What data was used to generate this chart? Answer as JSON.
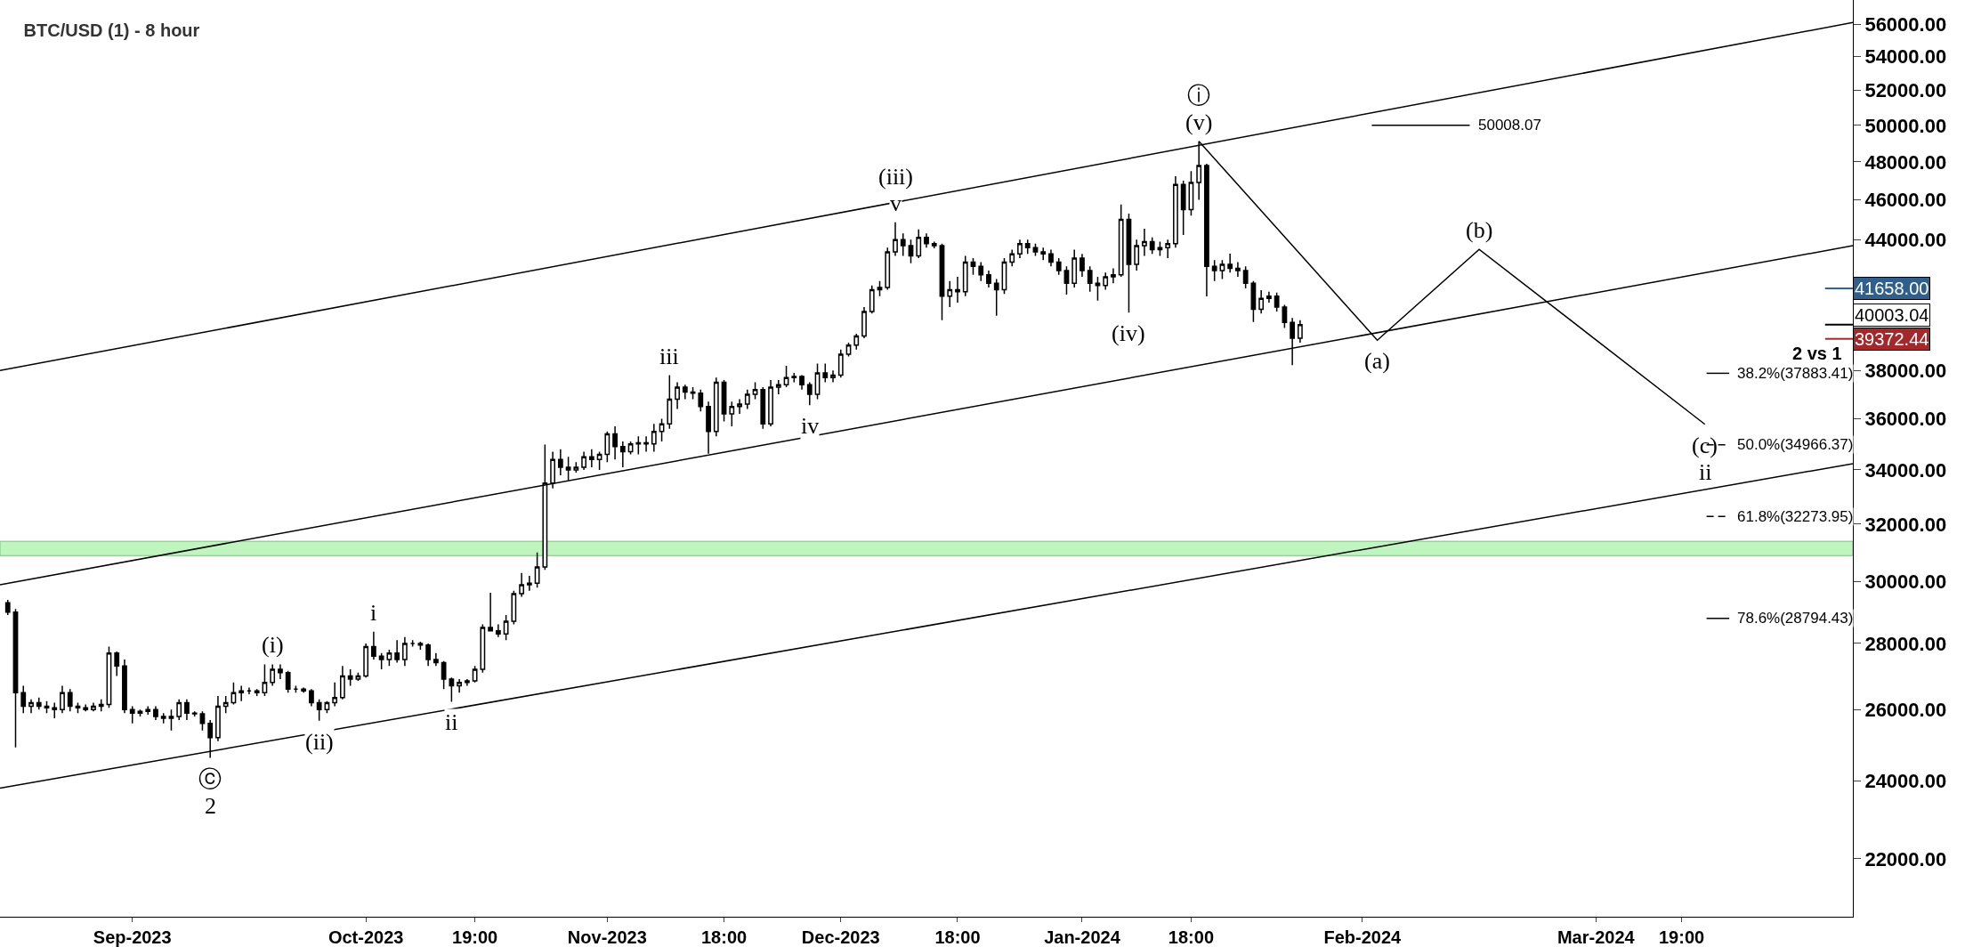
{
  "chart_data": {
    "type": "candlestick",
    "title": "BTC/USD (1) - 8 hour",
    "log": true,
    "grid": false,
    "marker": "none",
    "xlim": [
      "2023-08-15",
      "2024-04-09"
    ],
    "xticks": [
      {
        "value": "2023-09-01",
        "label": "Sep-2023"
      },
      {
        "value": "2023-10-01",
        "label": "Oct-2023"
      },
      {
        "value": "2023-10-15",
        "label": "19:00"
      },
      {
        "value": "2023-11-01",
        "label": "Nov-2023"
      },
      {
        "value": "2023-11-16",
        "label": "18:00"
      },
      {
        "value": "2023-12-01",
        "label": "Dec-2023"
      },
      {
        "value": "2023-12-16",
        "label": "18:00"
      },
      {
        "value": "2024-01-01",
        "label": "Jan-2024"
      },
      {
        "value": "2024-01-15",
        "label": "18:00"
      },
      {
        "value": "2024-02-06",
        "label": "Feb-2024"
      },
      {
        "value": "2024-03-07",
        "label": "Mar-2024"
      },
      {
        "value": "2024-03-18",
        "label": "19:00"
      }
    ],
    "ylim": [
      20620,
      57530
    ],
    "yticks": [
      {
        "value": 22000,
        "label": "22000.00"
      },
      {
        "value": 24000,
        "label": "24000.00"
      },
      {
        "value": 26000,
        "label": "26000.00"
      },
      {
        "value": 28000,
        "label": "28000.00"
      },
      {
        "value": 30000,
        "label": "30000.00"
      },
      {
        "value": 32000,
        "label": "32000.00"
      },
      {
        "value": 34000,
        "label": "34000.00"
      },
      {
        "value": 36000,
        "label": "36000.00"
      },
      {
        "value": 38000,
        "label": "38000.00"
      },
      {
        "value": 40000,
        "label": null
      },
      {
        "value": 42000,
        "label": null
      },
      {
        "value": 44000,
        "label": "44000.00"
      },
      {
        "value": 46000,
        "label": "46000.00"
      },
      {
        "value": 48000,
        "label": "48000.00"
      },
      {
        "value": 50000,
        "label": "50000.00"
      },
      {
        "value": 52000,
        "label": "52000.00"
      },
      {
        "value": 54000,
        "label": "54000.00"
      },
      {
        "value": 56000,
        "label": "56000.00"
      }
    ],
    "bands": [
      {
        "axis": "y",
        "from": 30890,
        "to": 31390,
        "color": "#c0f5c0"
      }
    ],
    "series": [
      {
        "type": "line",
        "color": "#000000",
        "line_style": "solid",
        "x": [
          "2023-08-15",
          "2024-04-09"
        ],
        "values": [
          38000,
          56100
        ]
      },
      {
        "type": "line",
        "color": "#000000",
        "line_style": "solid",
        "x": [
          "2023-08-15",
          "2024-04-09"
        ],
        "values": [
          29900,
          43700
        ]
      },
      {
        "type": "line",
        "color": "#000000",
        "line_style": "solid",
        "x": [
          "2023-08-15",
          "2024-04-09"
        ],
        "values": [
          23810,
          34240
        ]
      },
      {
        "type": "line",
        "color": "#000000",
        "line_style": "solid",
        "x": [
          "2024-01-16",
          "2024-02-07T22:00",
          "2024-02-21",
          "2024-03-21"
        ],
        "values": [
          49120,
          39310,
          43520,
          35780
        ]
      },
      {
        "type": "line",
        "color": "#000000",
        "line_style": "solid",
        "x": [
          "2024-02-07T05:00",
          "2024-02-19T19:00"
        ],
        "values": [
          50008.07,
          50008.07
        ]
      },
      {
        "type": "line",
        "color": "#000000",
        "line_style": "solid",
        "x": [
          "2024-03-21T05:00",
          "2024-03-24T03:00"
        ],
        "values": [
          37883.41,
          37883.41
        ]
      },
      {
        "type": "line",
        "color": "#000000",
        "line_style": "dashed",
        "x": [
          "2024-03-21T05:00",
          "2024-03-24T03:00"
        ],
        "values": [
          34966.37,
          34966.37
        ]
      },
      {
        "type": "line",
        "color": "#000000",
        "line_style": "dashed",
        "x": [
          "2024-03-21T05:00",
          "2024-03-24T03:00"
        ],
        "values": [
          32273.95,
          32273.95
        ]
      },
      {
        "type": "line",
        "color": "#000000",
        "line_style": "solid",
        "x": [
          "2024-03-21T05:00",
          "2024-03-24T03:00"
        ],
        "values": [
          28794.43,
          28794.43
        ]
      },
      {
        "color": "#000000",
        "x": [
          "2023-08-16",
          "2023-08-17",
          "2023-08-18",
          "2023-08-19",
          "2023-08-20",
          "2023-08-21",
          "2023-08-22",
          "2023-08-23",
          "2023-08-24",
          "2023-08-25",
          "2023-08-26",
          "2023-08-27",
          "2023-08-28",
          "2023-08-29",
          "2023-08-30",
          "2023-08-31",
          "2023-09-01",
          "2023-09-02",
          "2023-09-03",
          "2023-09-04",
          "2023-09-05",
          "2023-09-06",
          "2023-09-07",
          "2023-09-08",
          "2023-09-09",
          "2023-09-10",
          "2023-09-11",
          "2023-09-12",
          "2023-09-13",
          "2023-09-14",
          "2023-09-15",
          "2023-09-16",
          "2023-09-17",
          "2023-09-18",
          "2023-09-19",
          "2023-09-20",
          "2023-09-21",
          "2023-09-22",
          "2023-09-23",
          "2023-09-24",
          "2023-09-25",
          "2023-09-26",
          "2023-09-27",
          "2023-09-28",
          "2023-09-29",
          "2023-09-30",
          "2023-10-01",
          "2023-10-02",
          "2023-10-03",
          "2023-10-04",
          "2023-10-05",
          "2023-10-06",
          "2023-10-07",
          "2023-10-08",
          "2023-10-09",
          "2023-10-10",
          "2023-10-11",
          "2023-10-12",
          "2023-10-13",
          "2023-10-14",
          "2023-10-15",
          "2023-10-16",
          "2023-10-17",
          "2023-10-18",
          "2023-10-19",
          "2023-10-20",
          "2023-10-21",
          "2023-10-22",
          "2023-10-23",
          "2023-10-24",
          "2023-10-25",
          "2023-10-26",
          "2023-10-27",
          "2023-10-28",
          "2023-10-29",
          "2023-10-30",
          "2023-10-31",
          "2023-11-01",
          "2023-11-02",
          "2023-11-03",
          "2023-11-04",
          "2023-11-05",
          "2023-11-06",
          "2023-11-07",
          "2023-11-08",
          "2023-11-09",
          "2023-11-10",
          "2023-11-11",
          "2023-11-12",
          "2023-11-13",
          "2023-11-14",
          "2023-11-15",
          "2023-11-16",
          "2023-11-17",
          "2023-11-18",
          "2023-11-19",
          "2023-11-20",
          "2023-11-21",
          "2023-11-22",
          "2023-11-23",
          "2023-11-24",
          "2023-11-25",
          "2023-11-26",
          "2023-11-27",
          "2023-11-28",
          "2023-11-29",
          "2023-11-30",
          "2023-12-01",
          "2023-12-02",
          "2023-12-03",
          "2023-12-04",
          "2023-12-05",
          "2023-12-06",
          "2023-12-07",
          "2023-12-08",
          "2023-12-09",
          "2023-12-10",
          "2023-12-11",
          "2023-12-12",
          "2023-12-13",
          "2023-12-14",
          "2023-12-15",
          "2023-12-16",
          "2023-12-17",
          "2023-12-18",
          "2023-12-19",
          "2023-12-20",
          "2023-12-21",
          "2023-12-22",
          "2023-12-23",
          "2023-12-24",
          "2023-12-25",
          "2023-12-26",
          "2023-12-27",
          "2023-12-28",
          "2023-12-29",
          "2023-12-30",
          "2023-12-31",
          "2024-01-01",
          "2024-01-02",
          "2024-01-03",
          "2024-01-04",
          "2024-01-05",
          "2024-01-06",
          "2024-01-07",
          "2024-01-08",
          "2024-01-09",
          "2024-01-10",
          "2024-01-11",
          "2024-01-12",
          "2024-01-13",
          "2024-01-14",
          "2024-01-15",
          "2024-01-16",
          "2024-01-17",
          "2024-01-18",
          "2024-01-19",
          "2024-01-20",
          "2024-01-21",
          "2024-01-22",
          "2024-01-23",
          "2024-01-24",
          "2024-01-25",
          "2024-01-26",
          "2024-01-27",
          "2024-01-28",
          "2024-01-29"
        ],
        "ohlc": [
          [
            29300,
            29400,
            28900,
            29000
          ],
          [
            29000,
            29100,
            24920,
            26500
          ],
          [
            26500,
            26700,
            25900,
            26100
          ],
          [
            26100,
            26300,
            25900,
            26200
          ],
          [
            26200,
            26350,
            26000,
            26100
          ],
          [
            26100,
            26250,
            25900,
            26050
          ],
          [
            26050,
            26200,
            25750,
            26000
          ],
          [
            26000,
            26700,
            25900,
            26500
          ],
          [
            26500,
            26600,
            25950,
            26100
          ],
          [
            26100,
            26200,
            25900,
            26050
          ],
          [
            26050,
            26150,
            25950,
            26000
          ],
          [
            26000,
            26200,
            25950,
            26100
          ],
          [
            26100,
            26300,
            25950,
            26150
          ],
          [
            26150,
            27900,
            26050,
            27700
          ],
          [
            27700,
            27750,
            27000,
            27300
          ],
          [
            27300,
            27500,
            25900,
            26000
          ],
          [
            26000,
            26100,
            25600,
            25900
          ],
          [
            25900,
            26000,
            25800,
            25950
          ],
          [
            25950,
            26100,
            25850,
            26000
          ],
          [
            26000,
            26100,
            25700,
            25800
          ],
          [
            25800,
            25900,
            25600,
            25750
          ],
          [
            25750,
            26000,
            25400,
            25800
          ],
          [
            25800,
            26300,
            25700,
            26200
          ],
          [
            26200,
            26300,
            25700,
            25900
          ],
          [
            25900,
            25950,
            25800,
            25880
          ],
          [
            25880,
            25950,
            25400,
            25600
          ],
          [
            25600,
            25700,
            24630,
            25200
          ],
          [
            25200,
            26400,
            25100,
            26100
          ],
          [
            26100,
            26400,
            25900,
            26200
          ],
          [
            26200,
            26800,
            26150,
            26500
          ],
          [
            26500,
            26700,
            26250,
            26550
          ],
          [
            26550,
            26650,
            26450,
            26550
          ],
          [
            26550,
            26600,
            26400,
            26500
          ],
          [
            26500,
            27350,
            26400,
            26800
          ],
          [
            26800,
            27350,
            26700,
            27200
          ],
          [
            27200,
            27350,
            26900,
            27100
          ],
          [
            27100,
            27150,
            26500,
            26600
          ],
          [
            26600,
            26700,
            26500,
            26600
          ],
          [
            26600,
            26650,
            26500,
            26550
          ],
          [
            26550,
            26600,
            26100,
            26200
          ],
          [
            26200,
            26300,
            25680,
            26000
          ],
          [
            26000,
            26250,
            25900,
            26200
          ],
          [
            26200,
            26800,
            26100,
            26350
          ],
          [
            26350,
            27300,
            26300,
            27000
          ],
          [
            27000,
            27200,
            26700,
            26900
          ],
          [
            26900,
            27100,
            26850,
            27000
          ],
          [
            27000,
            28000,
            26950,
            27900
          ],
          [
            27900,
            28370,
            27500,
            27600
          ],
          [
            27600,
            27700,
            27200,
            27500
          ],
          [
            27500,
            27800,
            27300,
            27700
          ],
          [
            27700,
            28100,
            27400,
            27500
          ],
          [
            27500,
            28200,
            27300,
            28000
          ],
          [
            28000,
            28100,
            27900,
            28000
          ],
          [
            28000,
            28050,
            27800,
            27950
          ],
          [
            27950,
            28000,
            27300,
            27500
          ],
          [
            27500,
            27700,
            27300,
            27400
          ],
          [
            27400,
            27450,
            26600,
            26900
          ],
          [
            26900,
            26950,
            26230,
            26700
          ],
          [
            26700,
            26900,
            26500,
            26800
          ],
          [
            26800,
            26900,
            26700,
            26850
          ],
          [
            26850,
            27300,
            26800,
            27200
          ],
          [
            27200,
            28600,
            27100,
            28500
          ],
          [
            28500,
            29630,
            28400,
            28400
          ],
          [
            28400,
            28600,
            28200,
            28300
          ],
          [
            28300,
            28900,
            28100,
            28700
          ],
          [
            28700,
            29700,
            28600,
            29600
          ],
          [
            29600,
            30300,
            29500,
            29900
          ],
          [
            29900,
            30200,
            29700,
            29950
          ],
          [
            29950,
            31000,
            29800,
            30500
          ],
          [
            30500,
            34980,
            30400,
            33500
          ],
          [
            33500,
            34700,
            33300,
            34400
          ],
          [
            34400,
            34800,
            33800,
            34100
          ],
          [
            34100,
            34500,
            33600,
            34000
          ],
          [
            34000,
            34300,
            33900,
            34100
          ],
          [
            34100,
            34700,
            34000,
            34500
          ],
          [
            34500,
            34800,
            34100,
            34400
          ],
          [
            34400,
            34700,
            34000,
            34600
          ],
          [
            34600,
            35500,
            34300,
            35400
          ],
          [
            35400,
            35700,
            34400,
            34900
          ],
          [
            34900,
            35100,
            34100,
            34700
          ],
          [
            34700,
            35100,
            34600,
            35000
          ],
          [
            35000,
            35300,
            34600,
            35050
          ],
          [
            35050,
            35300,
            34700,
            35000
          ],
          [
            35000,
            35800,
            34700,
            35500
          ],
          [
            35500,
            36000,
            35100,
            35800
          ],
          [
            35800,
            37800,
            35600,
            36800
          ],
          [
            36800,
            37500,
            36400,
            37300
          ],
          [
            37300,
            37400,
            36800,
            37100
          ],
          [
            37100,
            37300,
            36800,
            37050
          ],
          [
            37050,
            37200,
            36300,
            36500
          ],
          [
            36500,
            36700,
            34620,
            35500
          ],
          [
            35500,
            37700,
            35300,
            37500
          ],
          [
            37500,
            37600,
            35900,
            36200
          ],
          [
            36200,
            36700,
            35700,
            36500
          ],
          [
            36500,
            36800,
            36200,
            36600
          ],
          [
            36600,
            37200,
            36400,
            37000
          ],
          [
            37000,
            37500,
            36800,
            37200
          ],
          [
            37200,
            37300,
            35600,
            35800
          ],
          [
            35800,
            37600,
            35700,
            37300
          ],
          [
            37300,
            37600,
            37000,
            37400
          ],
          [
            37400,
            38200,
            37300,
            37700
          ],
          [
            37700,
            37900,
            37500,
            37750
          ],
          [
            37750,
            37800,
            37200,
            37400
          ],
          [
            37400,
            37500,
            36550,
            37000
          ],
          [
            37000,
            38300,
            36800,
            37900
          ],
          [
            37900,
            38300,
            37500,
            37700
          ],
          [
            37700,
            38000,
            37500,
            37800
          ],
          [
            37800,
            38900,
            37700,
            38700
          ],
          [
            38700,
            39200,
            38600,
            39100
          ],
          [
            39100,
            39600,
            38900,
            39500
          ],
          [
            39500,
            40800,
            39400,
            40600
          ],
          [
            40600,
            41800,
            40500,
            41600
          ],
          [
            41600,
            42000,
            41300,
            41700
          ],
          [
            41700,
            43600,
            41600,
            43400
          ],
          [
            43400,
            44860,
            43200,
            44000
          ],
          [
            44000,
            44300,
            43200,
            43700
          ],
          [
            43700,
            44000,
            42850,
            43200
          ],
          [
            43200,
            44500,
            43100,
            44100
          ],
          [
            44100,
            44300,
            43600,
            43800
          ],
          [
            43800,
            43900,
            43570,
            43700
          ],
          [
            43700,
            43800,
            40200,
            41300
          ],
          [
            41300,
            42000,
            40800,
            41600
          ],
          [
            41600,
            42200,
            41000,
            41500
          ],
          [
            41500,
            43200,
            41300,
            42900
          ],
          [
            42900,
            43100,
            42300,
            42700
          ],
          [
            42700,
            42900,
            42000,
            42300
          ],
          [
            42300,
            42500,
            41700,
            41900
          ],
          [
            41900,
            42100,
            40400,
            41600
          ],
          [
            41600,
            43100,
            41400,
            42900
          ],
          [
            42900,
            43500,
            42700,
            43300
          ],
          [
            43300,
            44000,
            43100,
            43800
          ],
          [
            43800,
            44000,
            43300,
            43600
          ],
          [
            43600,
            43800,
            43200,
            43400
          ],
          [
            43400,
            43600,
            43000,
            43300
          ],
          [
            43300,
            43500,
            42700,
            42900
          ],
          [
            42900,
            43100,
            42300,
            42500
          ],
          [
            42500,
            42700,
            41370,
            41900
          ],
          [
            41900,
            43500,
            41700,
            43100
          ],
          [
            43100,
            43300,
            42200,
            42500
          ],
          [
            42500,
            42700,
            41500,
            41900
          ],
          [
            41900,
            42200,
            41090,
            41800
          ],
          [
            41800,
            42400,
            41600,
            42200
          ],
          [
            42200,
            42600,
            41900,
            42300
          ],
          [
            42300,
            45760,
            42200,
            45000
          ],
          [
            45000,
            45300,
            40540,
            42800
          ],
          [
            42800,
            44000,
            42500,
            43700
          ],
          [
            43700,
            44540,
            43200,
            43900
          ],
          [
            43900,
            44100,
            43300,
            43500
          ],
          [
            43500,
            43900,
            43200,
            43600
          ],
          [
            43600,
            44000,
            43100,
            43800
          ],
          [
            43800,
            47230,
            43600,
            46800
          ],
          [
            46800,
            47000,
            44230,
            45500
          ],
          [
            45500,
            47500,
            45200,
            46900
          ],
          [
            46900,
            49120,
            46000,
            47800
          ],
          [
            47800,
            47900,
            41290,
            42700
          ],
          [
            42700,
            43000,
            42000,
            42500
          ],
          [
            42500,
            43000,
            42100,
            42800
          ],
          [
            42800,
            43310,
            42400,
            42600
          ],
          [
            42600,
            42900,
            42200,
            42500
          ],
          [
            42500,
            42700,
            41660,
            41900
          ],
          [
            41900,
            42000,
            40120,
            40700
          ],
          [
            40700,
            41580,
            40500,
            41200
          ],
          [
            41200,
            41500,
            41000,
            41300
          ],
          [
            41300,
            41460,
            40600,
            40800
          ],
          [
            40800,
            40900,
            39850,
            40100
          ],
          [
            40100,
            40300,
            38230,
            39400
          ],
          [
            39400,
            40200,
            39200,
            40003.04
          ]
        ]
      }
    ],
    "ref_lines": [
      {
        "axis": "y",
        "value": 41658,
        "label": "41658.00",
        "color": "#2f5f8a"
      },
      {
        "axis": "y",
        "value": 40003.04,
        "label": "40003.04",
        "color": "#000000"
      },
      {
        "axis": "y",
        "value": 39372.44,
        "label": "39372.44",
        "color": "#a3282b"
      }
    ],
    "annotations": [
      {
        "text": "ⓒ",
        "x": "2023-09-11",
        "y": 24630
      },
      {
        "text": "2",
        "x": "2023-09-11",
        "y": 24630
      },
      {
        "text": "(i)",
        "x": "2023-09-19",
        "y": 27350
      },
      {
        "text": "(ii)",
        "x": "2023-09-25",
        "y": 25680
      },
      {
        "text": "i",
        "x": "2023-10-02",
        "y": 28370
      },
      {
        "text": "ii",
        "x": "2023-10-12",
        "y": 26230
      },
      {
        "text": "iii",
        "x": "2023-11-09",
        "y": 37800
      },
      {
        "text": "iv",
        "x": "2023-11-27",
        "y": 36550
      },
      {
        "text": "v",
        "x": "2023-12-08",
        "y": 44860
      },
      {
        "text": "(iii)",
        "x": "2023-12-08",
        "y": 44860
      },
      {
        "text": "(iv)",
        "x": "2024-01-07",
        "y": 40540
      },
      {
        "text": "(v)",
        "x": "2024-01-16",
        "y": 49120
      },
      {
        "text": "ⓘ",
        "x": "2024-01-16",
        "y": 49120
      },
      {
        "text": "(a)",
        "x": "2024-02-07T22:00",
        "y": 39310
      },
      {
        "text": "(b)",
        "x": "2024-02-21",
        "y": 43520
      },
      {
        "text": "(c)",
        "x": "2024-03-21",
        "y": 35780
      },
      {
        "text": "ii",
        "x": "2024-03-21",
        "y": 35780
      },
      {
        "text": "50008.07",
        "x": "2024-02-19T19:00",
        "y": 50008.07
      },
      {
        "text": "38.2%(37883.41)",
        "x": "2024-03-24T03:00",
        "y": 37883.41
      },
      {
        "text": "50.0%(34966.37)",
        "x": "2024-03-24T03:00",
        "y": 34966.37
      },
      {
        "text": "61.8%(32273.95)",
        "x": "2024-03-24T03:00",
        "y": 32273.95
      },
      {
        "text": "78.6%(28794.43)",
        "x": "2024-03-24T03:00",
        "y": 28794.43
      },
      "2 vs 1"
    ]
  }
}
